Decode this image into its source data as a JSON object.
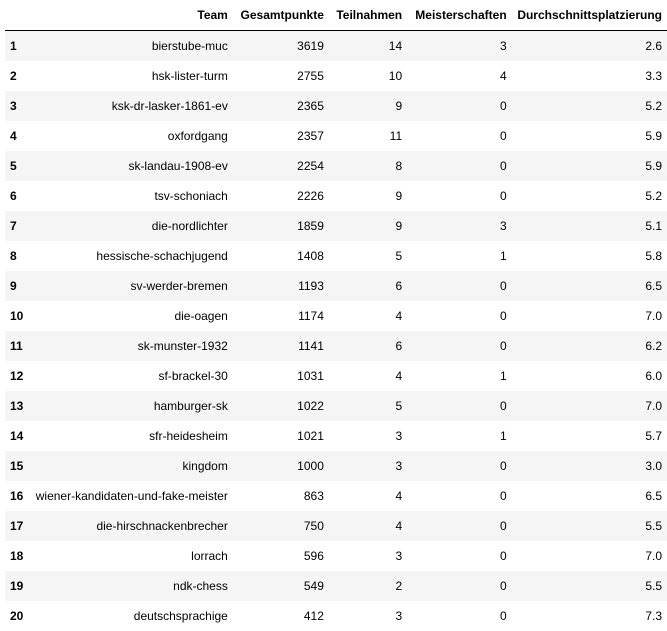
{
  "table": {
    "headers": [
      "",
      "Team",
      "Gesamtpunkte",
      "Teilnahmen",
      "Meisterschaften",
      "Durchschnittsplatzierung"
    ],
    "rows": [
      {
        "index": "1",
        "team": "bierstube-muc",
        "punkte": "3619",
        "teilnahmen": "14",
        "meister": "3",
        "platz": "2.6"
      },
      {
        "index": "2",
        "team": "hsk-lister-turm",
        "punkte": "2755",
        "teilnahmen": "10",
        "meister": "4",
        "platz": "3.3"
      },
      {
        "index": "3",
        "team": "ksk-dr-lasker-1861-ev",
        "punkte": "2365",
        "teilnahmen": "9",
        "meister": "0",
        "platz": "5.2"
      },
      {
        "index": "4",
        "team": "oxfordgang",
        "punkte": "2357",
        "teilnahmen": "11",
        "meister": "0",
        "platz": "5.9"
      },
      {
        "index": "5",
        "team": "sk-landau-1908-ev",
        "punkte": "2254",
        "teilnahmen": "8",
        "meister": "0",
        "platz": "5.9"
      },
      {
        "index": "6",
        "team": "tsv-schoniach",
        "punkte": "2226",
        "teilnahmen": "9",
        "meister": "0",
        "platz": "5.2"
      },
      {
        "index": "7",
        "team": "die-nordlichter",
        "punkte": "1859",
        "teilnahmen": "9",
        "meister": "3",
        "platz": "5.1"
      },
      {
        "index": "8",
        "team": "hessische-schachjugend",
        "punkte": "1408",
        "teilnahmen": "5",
        "meister": "1",
        "platz": "5.8"
      },
      {
        "index": "9",
        "team": "sv-werder-bremen",
        "punkte": "1193",
        "teilnahmen": "6",
        "meister": "0",
        "platz": "6.5"
      },
      {
        "index": "10",
        "team": "die-oagen",
        "punkte": "1174",
        "teilnahmen": "4",
        "meister": "0",
        "platz": "7.0"
      },
      {
        "index": "11",
        "team": "sk-munster-1932",
        "punkte": "1141",
        "teilnahmen": "6",
        "meister": "0",
        "platz": "6.2"
      },
      {
        "index": "12",
        "team": "sf-brackel-30",
        "punkte": "1031",
        "teilnahmen": "4",
        "meister": "1",
        "platz": "6.0"
      },
      {
        "index": "13",
        "team": "hamburger-sk",
        "punkte": "1022",
        "teilnahmen": "5",
        "meister": "0",
        "platz": "7.0"
      },
      {
        "index": "14",
        "team": "sfr-heidesheim",
        "punkte": "1021",
        "teilnahmen": "3",
        "meister": "1",
        "platz": "5.7"
      },
      {
        "index": "15",
        "team": "kingdom",
        "punkte": "1000",
        "teilnahmen": "3",
        "meister": "0",
        "platz": "3.0"
      },
      {
        "index": "16",
        "team": "wiener-kandidaten-und-fake-meister",
        "punkte": "863",
        "teilnahmen": "4",
        "meister": "0",
        "platz": "6.5"
      },
      {
        "index": "17",
        "team": "die-hirschnackenbrecher",
        "punkte": "750",
        "teilnahmen": "4",
        "meister": "0",
        "platz": "5.5"
      },
      {
        "index": "18",
        "team": "lorrach",
        "punkte": "596",
        "teilnahmen": "3",
        "meister": "0",
        "platz": "7.0"
      },
      {
        "index": "19",
        "team": "ndk-chess",
        "punkte": "549",
        "teilnahmen": "2",
        "meister": "0",
        "platz": "5.5"
      },
      {
        "index": "20",
        "team": "deutschsprachige",
        "punkte": "412",
        "teilnahmen": "3",
        "meister": "0",
        "platz": "7.3"
      }
    ]
  }
}
